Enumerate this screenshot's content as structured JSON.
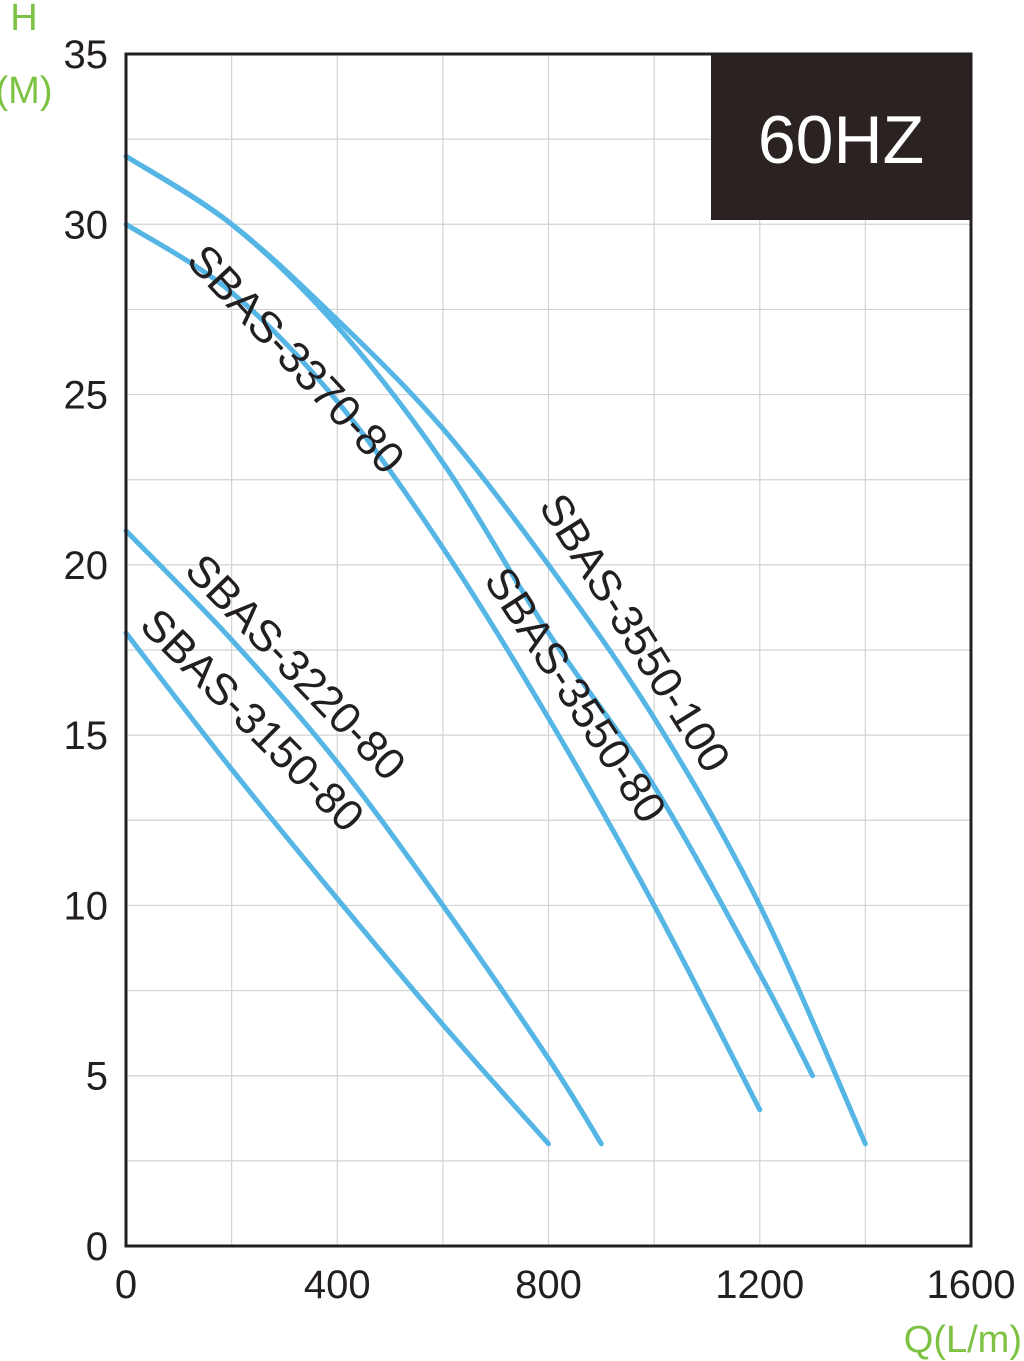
{
  "chart_data": {
    "type": "line",
    "title": "",
    "badge": "60HZ",
    "xlabel": "Q(L/m)",
    "ylabel_line1": "H",
    "ylabel_line2": "(M)",
    "xlim": [
      0,
      1600
    ],
    "ylim": [
      0,
      35
    ],
    "x_ticks": [
      0,
      400,
      800,
      1200,
      1600
    ],
    "y_ticks": [
      0,
      5,
      10,
      15,
      20,
      25,
      30,
      35
    ],
    "x_grid_step": 200,
    "y_grid_step": 2.5,
    "grid": true,
    "colors": {
      "curve": "#55b6e6",
      "axis": "#231f20",
      "axis_label": "#7dc242",
      "badge_bg": "#2b2322",
      "grid": "#d3d3d3"
    },
    "series": [
      {
        "name": "SBAS-3150-80",
        "x": [
          0,
          200,
          400,
          600,
          800
        ],
        "y": [
          18,
          14,
          10.2,
          6.5,
          3
        ]
      },
      {
        "name": "SBAS-3220-80",
        "x": [
          0,
          200,
          400,
          600,
          800,
          900
        ],
        "y": [
          21,
          17.8,
          14.2,
          10,
          5.5,
          3
        ]
      },
      {
        "name": "SBAS-3370-80",
        "x": [
          0,
          200,
          400,
          600,
          800,
          1000,
          1200
        ],
        "y": [
          30,
          28,
          24.8,
          20.5,
          15.5,
          10,
          4
        ]
      },
      {
        "name": "SBAS-3550-80",
        "x": [
          0,
          200,
          400,
          600,
          800,
          1000,
          1200,
          1300
        ],
        "y": [
          32,
          30,
          27,
          23,
          18,
          13.5,
          8,
          5
        ]
      },
      {
        "name": "SBAS-3550-100",
        "x": [
          0,
          200,
          400,
          600,
          800,
          1000,
          1200,
          1400
        ],
        "y": [
          32,
          30,
          27.2,
          24,
          20,
          15.5,
          10,
          3
        ]
      }
    ]
  }
}
